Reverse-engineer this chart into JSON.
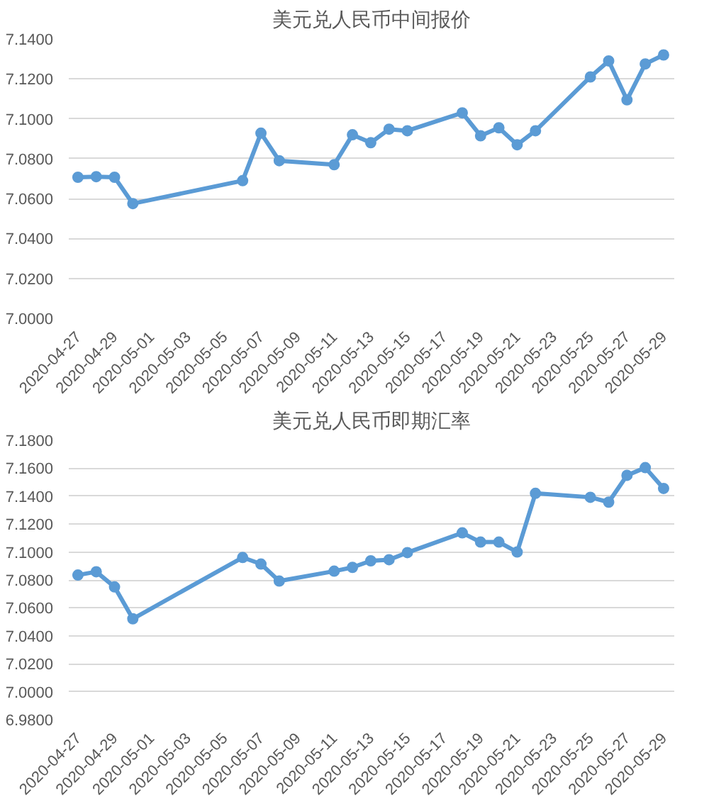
{
  "chart_data": [
    {
      "type": "line",
      "title": "美元兑人民币中间报价",
      "x": [
        "2020-04-27",
        "2020-04-28",
        "2020-04-29",
        "2020-04-30",
        "2020-05-06",
        "2020-05-07",
        "2020-05-08",
        "2020-05-11",
        "2020-05-12",
        "2020-05-13",
        "2020-05-14",
        "2020-05-15",
        "2020-05-18",
        "2020-05-19",
        "2020-05-20",
        "2020-05-21",
        "2020-05-22",
        "2020-05-25",
        "2020-05-26",
        "2020-05-27",
        "2020-05-28",
        "2020-05-29"
      ],
      "series": [
        {
          "color": "#5b9bd5",
          "values": [
            7.0707,
            7.071,
            7.0707,
            7.0575,
            7.069,
            7.0928,
            7.079,
            7.077,
            7.092,
            7.088,
            7.0948,
            7.094,
            7.103,
            7.0915,
            7.0955,
            7.087,
            7.094,
            7.121,
            7.129,
            7.1095,
            7.1275,
            7.132
          ]
        }
      ],
      "xlim": [
        "2020-04-26T12:00",
        "2020-05-29T14:00"
      ],
      "xticks": [
        "2020-04-27",
        "2020-04-29",
        "2020-05-01",
        "2020-05-03",
        "2020-05-05",
        "2020-05-07",
        "2020-05-09",
        "2020-05-11",
        "2020-05-13",
        "2020-05-15",
        "2020-05-17",
        "2020-05-19",
        "2020-05-21",
        "2020-05-23",
        "2020-05-25",
        "2020-05-27",
        "2020-05-29"
      ],
      "ylim": [
        7.0,
        7.14
      ],
      "yticks": [
        {
          "value": 7.0,
          "label": "7.0000"
        },
        {
          "value": 7.02,
          "label": "7.0200"
        },
        {
          "value": 7.04,
          "label": "7.0400"
        },
        {
          "value": 7.06,
          "label": "7.0600"
        },
        {
          "value": 7.08,
          "label": "7.0800"
        },
        {
          "value": 7.1,
          "label": "7.1000"
        },
        {
          "value": 7.12,
          "label": "7.1200"
        },
        {
          "value": 7.14,
          "label": "7.1400"
        }
      ],
      "grid": "y",
      "marker": "circle",
      "line_style": "solid"
    },
    {
      "type": "line",
      "title": "美元兑人民币即期汇率",
      "x": [
        "2020-04-27",
        "2020-04-28",
        "2020-04-29",
        "2020-04-30",
        "2020-05-06",
        "2020-05-07",
        "2020-05-08",
        "2020-05-11",
        "2020-05-12",
        "2020-05-13",
        "2020-05-14",
        "2020-05-15",
        "2020-05-18",
        "2020-05-19",
        "2020-05-20",
        "2020-05-21",
        "2020-05-22",
        "2020-05-25",
        "2020-05-26",
        "2020-05-27",
        "2020-05-28",
        "2020-05-29"
      ],
      "series": [
        {
          "color": "#5b9bd5",
          "values": [
            7.0835,
            7.0859,
            7.075,
            7.0522,
            7.0961,
            7.0914,
            7.0792,
            7.0863,
            7.089,
            7.0937,
            7.0945,
            7.0996,
            7.1137,
            7.1071,
            7.1071,
            7.1,
            7.142,
            7.1392,
            7.1357,
            7.1549,
            7.1604,
            7.1455
          ]
        }
      ],
      "xlim": [
        "2020-04-26T12:00",
        "2020-05-29T14:00"
      ],
      "xticks": [
        "2020-04-27",
        "2020-04-29",
        "2020-05-01",
        "2020-05-03",
        "2020-05-05",
        "2020-05-07",
        "2020-05-09",
        "2020-05-11",
        "2020-05-13",
        "2020-05-15",
        "2020-05-17",
        "2020-05-19",
        "2020-05-21",
        "2020-05-23",
        "2020-05-25",
        "2020-05-27",
        "2020-05-29"
      ],
      "ylim": [
        6.98,
        7.18
      ],
      "yticks": [
        {
          "value": 6.98,
          "label": "6.9800"
        },
        {
          "value": 7.0,
          "label": "7.0000"
        },
        {
          "value": 7.02,
          "label": "7.0200"
        },
        {
          "value": 7.04,
          "label": "7.0400"
        },
        {
          "value": 7.06,
          "label": "7.0600"
        },
        {
          "value": 7.08,
          "label": "7.0800"
        },
        {
          "value": 7.1,
          "label": "7.1000"
        },
        {
          "value": 7.12,
          "label": "7.1200"
        },
        {
          "value": 7.14,
          "label": "7.1400"
        },
        {
          "value": 7.16,
          "label": "7.1600"
        },
        {
          "value": 7.18,
          "label": "7.1800"
        }
      ],
      "grid": "y",
      "marker": "circle",
      "line_style": "solid"
    }
  ]
}
